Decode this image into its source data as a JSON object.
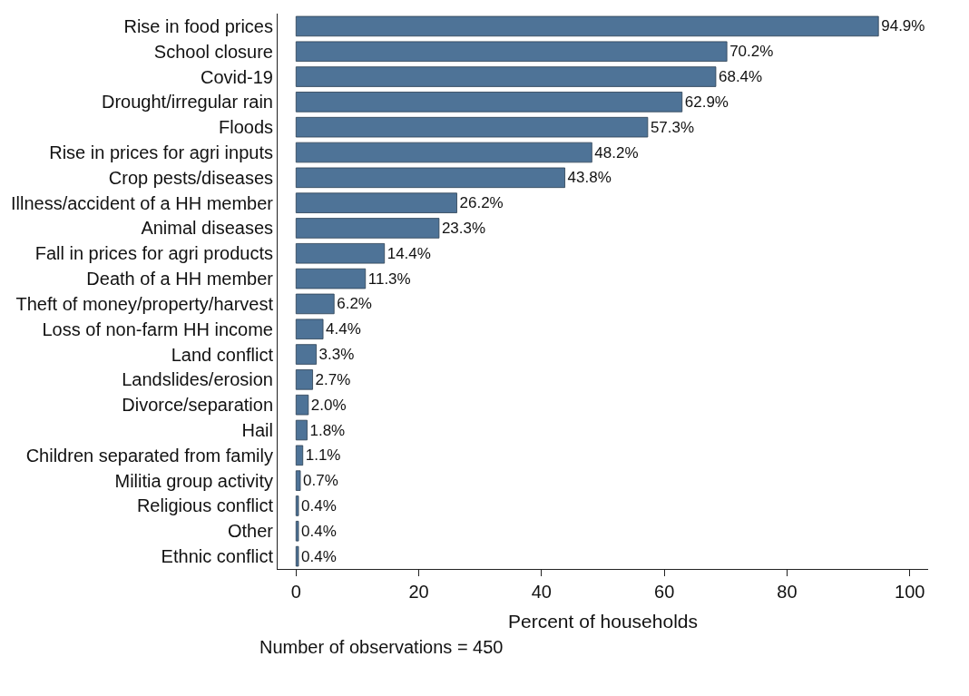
{
  "chart_data": {
    "type": "bar",
    "orientation": "horizontal",
    "xlabel": "Percent of households",
    "categories": [
      "Rise in food prices",
      "School closure",
      "Covid-19",
      "Drought/irregular rain",
      "Floods",
      "Rise in prices for agri inputs",
      "Crop pests/diseases",
      "Illness/accident of a HH member",
      "Animal diseases",
      "Fall in prices for agri products",
      "Death of a HH member",
      "Theft of money/property/harvest",
      "Loss of non-farm HH income",
      "Land conflict",
      "Landslides/erosion",
      "Divorce/separation",
      "Hail",
      "Children separated from family",
      "Militia group activity",
      "Religious conflict",
      "Other",
      "Ethnic conflict"
    ],
    "values": [
      94.9,
      70.2,
      68.4,
      62.9,
      57.3,
      48.2,
      43.8,
      26.2,
      23.3,
      14.4,
      11.3,
      6.2,
      4.4,
      3.3,
      2.7,
      2.0,
      1.8,
      1.1,
      0.7,
      0.4,
      0.4,
      0.4
    ],
    "value_labels": [
      "94.9%",
      "70.2%",
      "68.4%",
      "62.9%",
      "57.3%",
      "48.2%",
      "43.8%",
      "26.2%",
      "23.3%",
      "14.4%",
      "11.3%",
      "6.2%",
      "4.4%",
      "3.3%",
      "2.7%",
      "2.0%",
      "1.8%",
      "1.1%",
      "0.7%",
      "0.4%",
      "0.4%",
      "0.4%"
    ],
    "color": "#4e7397",
    "xlim": [
      -3,
      103
    ],
    "xticks": [
      0,
      20,
      40,
      60,
      80,
      100
    ],
    "annotations": [
      "Number of observations = 450"
    ]
  }
}
